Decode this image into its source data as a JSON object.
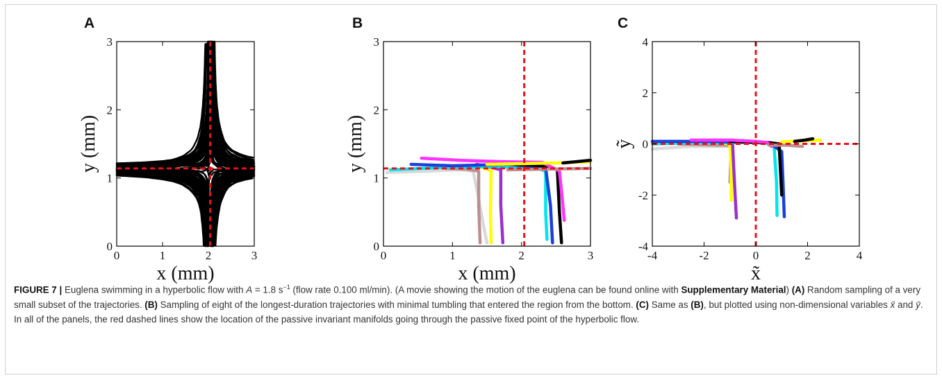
{
  "figure": {
    "panel_letters": [
      "A",
      "B",
      "C"
    ],
    "caption": {
      "label": "FIGURE 7 |",
      "text_1": " Euglena swimming in a hyperbolic flow with ",
      "A_symbol": "A",
      "text_2": " = 1.8 s",
      "superscript": "−1",
      "text_3": " (flow rate 0.100 ml/min). (A movie showing the motion of the euglena can be found online with ",
      "supp_bold": "Supplementary Material",
      "text_4": ") ",
      "A_bold": "(A)",
      "text_5": " Random sampling of a very small subset of the trajectories. ",
      "B_bold": "(B)",
      "text_6": " Sampling of eight of the longest-duration trajectories with minimal tumbling that entered the region from the bottom. ",
      "C_bold": "(C)",
      "text_7": " Same as ",
      "C_ref_bold": "(B)",
      "text_8": ", but plotted using non-dimensional variables ",
      "xbar": "x̄",
      "text_9": " and ",
      "ybar": "ȳ",
      "text_10": ". In all of the panels, the red dashed lines show the location of the passive invariant manifolds going through the passive fixed point of the hyperbolic flow."
    }
  },
  "chart_data": [
    {
      "panel": "A",
      "type": "line",
      "xlabel": "x (mm)",
      "ylabel": "y (mm)",
      "xlim": [
        0,
        3
      ],
      "ylim": [
        0,
        3
      ],
      "xticks": [
        "0",
        "1",
        "2",
        "3"
      ],
      "yticks": [
        "0",
        "1",
        "2",
        "3"
      ],
      "series_color": "#000000",
      "manifold_color": "#e8101a",
      "manifolds": {
        "x": 2.04,
        "y": 1.14
      },
      "description_curves": "dense random sampling of trajectories forming hyperbolic pattern"
    },
    {
      "panel": "B",
      "type": "line",
      "xlabel": "x (mm)",
      "ylabel": "y (mm)",
      "xlim": [
        0,
        3
      ],
      "ylim": [
        0,
        3
      ],
      "xticks": [
        "0",
        "1",
        "2",
        "3"
      ],
      "yticks": [
        "0",
        "1",
        "2",
        "3"
      ],
      "manifold_color": "#e8101a",
      "manifolds": {
        "x": 2.04,
        "y": 1.14
      },
      "series": [
        {
          "color": "#d9d9d9",
          "x": [
            0.05,
            0.6,
            1.1,
            1.3,
            1.38,
            1.45,
            1.5
          ],
          "y": [
            1.08,
            1.1,
            1.12,
            1.1,
            0.7,
            0.3,
            0.05
          ]
        },
        {
          "color": "#bc8f8f",
          "x": [
            0.9,
            1.2,
            1.38,
            1.38,
            1.4
          ],
          "y": [
            1.14,
            1.13,
            1.1,
            0.6,
            0.05
          ]
        },
        {
          "color": "#ffff00",
          "x": [
            1.2,
            1.45,
            1.56,
            1.55,
            1.56
          ],
          "y": [
            1.18,
            1.15,
            1.1,
            0.5,
            0.05
          ]
        },
        {
          "color": "#9932cc",
          "x": [
            1.35,
            1.55,
            1.7,
            1.7,
            1.73
          ],
          "y": [
            1.2,
            1.16,
            1.12,
            0.6,
            0.05
          ]
        },
        {
          "color": "#00e5ee",
          "x": [
            0.1,
            0.8,
            1.6,
            2.2,
            2.35,
            2.35,
            2.37
          ],
          "y": [
            1.12,
            1.15,
            1.17,
            1.15,
            1.1,
            0.5,
            0.1
          ]
        },
        {
          "color": "#1c3fd8",
          "x": [
            0.4,
            1.0,
            1.8,
            2.35,
            2.42,
            2.45
          ],
          "y": [
            1.2,
            1.18,
            1.2,
            1.15,
            0.6,
            0.05
          ]
        },
        {
          "color": "#000000",
          "x": [
            1.9,
            2.3,
            2.52,
            2.55,
            2.58
          ],
          "y": [
            1.2,
            1.18,
            1.12,
            0.5,
            0.05
          ]
        },
        {
          "color": "#ff33ff",
          "x": [
            0.55,
            1.1,
            1.7,
            2.3,
            2.55,
            2.6,
            2.62
          ],
          "y": [
            1.29,
            1.26,
            1.24,
            1.23,
            1.1,
            0.6,
            0.38
          ]
        },
        {
          "color": "#bc8f8f",
          "x": [
            1.8,
            2.4,
            3.0
          ],
          "y": [
            1.12,
            1.13,
            1.14
          ]
        },
        {
          "color": "#ffff00",
          "x": [
            1.5,
            2.5,
            3.0
          ],
          "y": [
            1.2,
            1.22,
            1.24
          ]
        },
        {
          "color": "#000000",
          "x": [
            2.6,
            2.9,
            3.0
          ],
          "y": [
            1.22,
            1.25,
            1.26
          ]
        }
      ]
    },
    {
      "panel": "C",
      "type": "line",
      "xlabel": "x̃",
      "ylabel": "ỹ",
      "xlim": [
        -4,
        4
      ],
      "ylim": [
        -4,
        4
      ],
      "xticks": [
        "-4",
        "-2",
        "0",
        "2",
        "4"
      ],
      "yticks": [
        "-4",
        "-2",
        "0",
        "2",
        "4"
      ],
      "manifold_color": "#e8101a",
      "manifolds": {
        "x": 0,
        "y": 0
      },
      "series": [
        {
          "color": "#d9d9d9",
          "x": [
            -4.0,
            -2.5,
            -1.5,
            -1.0,
            -0.9
          ],
          "y": [
            -0.2,
            -0.1,
            -0.1,
            -0.1,
            -0.2
          ]
        },
        {
          "color": "#bc8f8f",
          "x": [
            -3.0,
            -1.5,
            -0.95,
            -0.98,
            -1.0
          ],
          "y": [
            0.0,
            -0.05,
            -0.05,
            -1.0,
            -1.5
          ]
        },
        {
          "color": "#ffff00",
          "x": [
            -1.5,
            -1.0,
            -0.95,
            -0.95
          ],
          "y": [
            0.05,
            0.0,
            -1.0,
            -2.2
          ]
        },
        {
          "color": "#9932cc",
          "x": [
            -1.6,
            -0.9,
            -0.85,
            -0.8,
            -0.75
          ],
          "y": [
            0.15,
            0.05,
            -1.0,
            -2.0,
            -2.9
          ]
        },
        {
          "color": "#00e5ee",
          "x": [
            -4.0,
            -2.0,
            0.0,
            0.7,
            0.8,
            0.82
          ],
          "y": [
            0.0,
            0.05,
            0.05,
            0.0,
            -1.5,
            -2.8
          ]
        },
        {
          "color": "#1c3fd8",
          "x": [
            -4.0,
            -2.0,
            0.5,
            1.0,
            1.05,
            1.1
          ],
          "y": [
            0.1,
            0.1,
            0.05,
            -0.3,
            -1.5,
            -2.85
          ]
        },
        {
          "color": "#000000",
          "x": [
            -1.0,
            0.5,
            0.9,
            0.95,
            1.0
          ],
          "y": [
            0.1,
            0.05,
            0.0,
            -1.0,
            -2.0
          ]
        },
        {
          "color": "#ff33ff",
          "x": [
            -2.5,
            -1.0,
            0.0,
            0.45,
            0.6
          ],
          "y": [
            0.15,
            0.15,
            0.1,
            0.05,
            -0.1
          ]
        },
        {
          "color": "#ffff00",
          "x": [
            1.0,
            1.8,
            2.5
          ],
          "y": [
            0.08,
            0.12,
            0.15
          ]
        },
        {
          "color": "#bc8f8f",
          "x": [
            0.5,
            1.2,
            1.8
          ],
          "y": [
            -0.05,
            -0.05,
            -0.1
          ]
        },
        {
          "color": "#000000",
          "x": [
            1.5,
            1.9,
            2.2
          ],
          "y": [
            0.1,
            0.15,
            0.2
          ]
        }
      ]
    }
  ]
}
